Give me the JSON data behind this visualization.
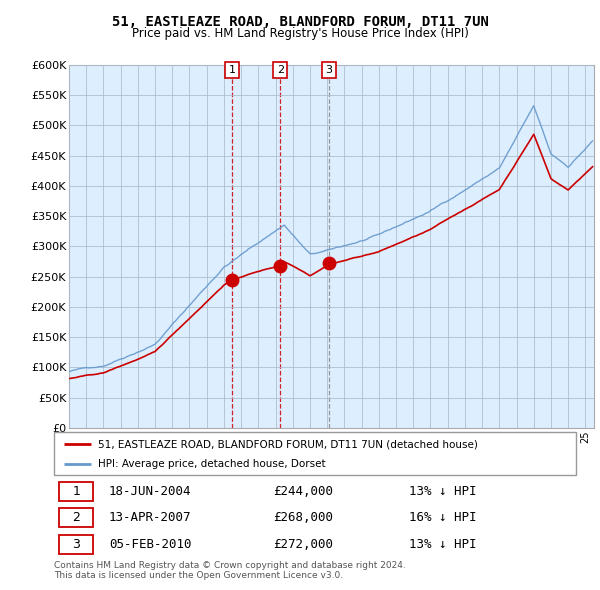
{
  "title": "51, EASTLEAZE ROAD, BLANDFORD FORUM, DT11 7UN",
  "subtitle": "Price paid vs. HM Land Registry's House Price Index (HPI)",
  "ylim": [
    0,
    600000
  ],
  "yticks": [
    0,
    50000,
    100000,
    150000,
    200000,
    250000,
    300000,
    350000,
    400000,
    450000,
    500000,
    550000,
    600000
  ],
  "xlim_start": 1995.0,
  "xlim_end": 2025.5,
  "legend_label_red": "51, EASTLEAZE ROAD, BLANDFORD FORUM, DT11 7UN (detached house)",
  "legend_label_blue": "HPI: Average price, detached house, Dorset",
  "sale_points": [
    {
      "label": "1",
      "date": "18-JUN-2004",
      "price": 244000,
      "x": 2004.46,
      "vline_color": "#cc0000"
    },
    {
      "label": "2",
      "date": "13-APR-2007",
      "price": 268000,
      "x": 2007.28,
      "vline_color": "#cc0000"
    },
    {
      "label": "3",
      "date": "05-FEB-2010",
      "price": 272000,
      "x": 2010.1,
      "vline_color": "#888888"
    }
  ],
  "footnote1": "Contains HM Land Registry data © Crown copyright and database right 2024.",
  "footnote2": "This data is licensed under the Open Government Licence v3.0.",
  "table_rows": [
    {
      "num": "1",
      "date": "18-JUN-2004",
      "price": "£244,000",
      "hpi": "13% ↓ HPI"
    },
    {
      "num": "2",
      "date": "13-APR-2007",
      "price": "£268,000",
      "hpi": "16% ↓ HPI"
    },
    {
      "num": "3",
      "date": "05-FEB-2010",
      "price": "£272,000",
      "hpi": "13% ↓ HPI"
    }
  ],
  "red_color": "#cc0000",
  "blue_color": "#6699cc",
  "chart_bg_color": "#ddeeff",
  "background_color": "#ffffff",
  "grid_color": "#aabbcc"
}
